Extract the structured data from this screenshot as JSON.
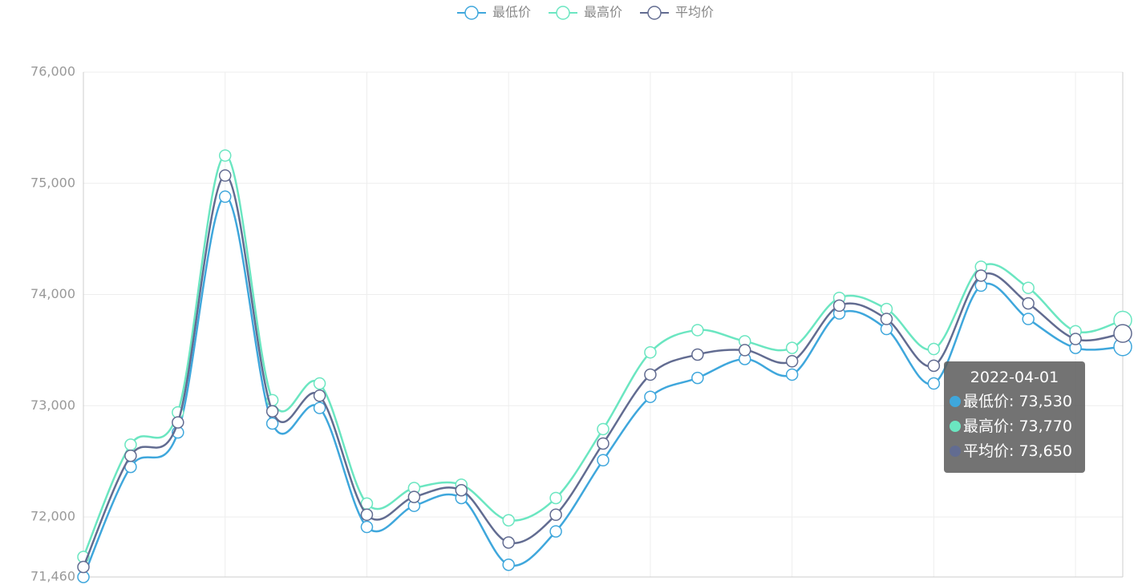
{
  "chart_data": {
    "type": "line",
    "categories": [
      null,
      null,
      null,
      null,
      null,
      null,
      null,
      null,
      null,
      null,
      null,
      null,
      null,
      null,
      null,
      null,
      null,
      null,
      null,
      null,
      null,
      null,
      "2022-04-01"
    ],
    "series": [
      {
        "name": "最低价",
        "color": "#3fa7dc",
        "values": [
          71460,
          72450,
          72760,
          74880,
          72840,
          72980,
          71910,
          72100,
          72170,
          71570,
          71870,
          72510,
          73080,
          73250,
          73420,
          73280,
          73830,
          73690,
          73200,
          74080,
          73780,
          73520,
          73530
        ]
      },
      {
        "name": "最高价",
        "color": "#6be6c1",
        "values": [
          71640,
          72650,
          72940,
          75250,
          73050,
          73200,
          72120,
          72260,
          72290,
          71970,
          72170,
          72790,
          73480,
          73680,
          73580,
          73520,
          73970,
          73870,
          73510,
          74250,
          74060,
          73670,
          73770
        ]
      },
      {
        "name": "平均价",
        "color": "#626c91",
        "values": [
          71550,
          72550,
          72850,
          75070,
          72950,
          73090,
          72020,
          72180,
          72240,
          71770,
          72020,
          72660,
          73280,
          73460,
          73500,
          73400,
          73900,
          73780,
          73360,
          74170,
          73920,
          73600,
          73650
        ]
      }
    ],
    "ylim": [
      71460,
      76000
    ],
    "yticks": [
      {
        "value": 71460,
        "label": "71,460"
      },
      {
        "value": 72000,
        "label": "72,000"
      },
      {
        "value": 73000,
        "label": "73,000"
      },
      {
        "value": 74000,
        "label": "74,000"
      },
      {
        "value": 75000,
        "label": "75,000"
      },
      {
        "value": 76000,
        "label": "76,000"
      }
    ],
    "grid": true,
    "smooth": true,
    "legend": "top",
    "tooltip": {
      "index": 22,
      "labels": [
        "73,530",
        "73,770",
        "73,650"
      ]
    }
  }
}
